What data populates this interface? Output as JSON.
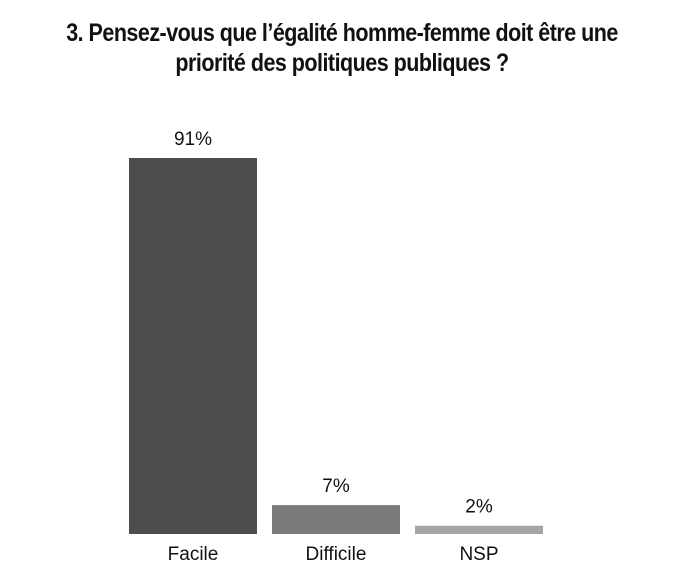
{
  "chart_data": {
    "type": "bar",
    "title_lines": [
      "3. Pensez-vous que l’égalité homme-femme doit être une",
      "priorité des politiques publiques ?"
    ],
    "categories": [
      "Facile",
      "Difficile",
      "NSP"
    ],
    "values": [
      91,
      7,
      2
    ],
    "value_labels": [
      "91%",
      "7%",
      "2%"
    ],
    "colors": [
      "#4d4d4d",
      "#7a7a7a",
      "#a6a6a6"
    ],
    "ylim": [
      0,
      100
    ],
    "xlabel": "",
    "ylabel": "",
    "grid": false,
    "legend": "none"
  }
}
